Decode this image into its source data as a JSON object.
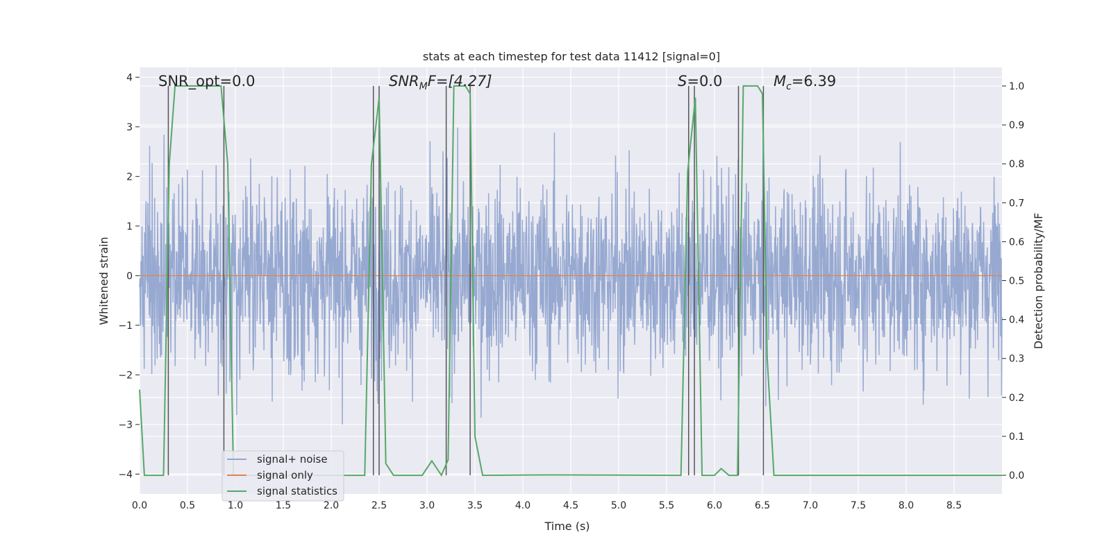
{
  "chart_data": {
    "type": "line",
    "title": "stats at each timestep for test data 11412 [signal=0]",
    "xlabel": "Time (s)",
    "ylabel": "Whitened strain",
    "y2label": "Detection probability/MF",
    "xlim": [
      0.0,
      9.0
    ],
    "ylim": [
      -4.4,
      4.2
    ],
    "y2lim": [
      -0.048,
      1.048
    ],
    "x_ticks": [
      "0.0",
      "0.5",
      "1.0",
      "1.5",
      "2.0",
      "2.5",
      "3.0",
      "3.5",
      "4.0",
      "4.5",
      "5.0",
      "5.5",
      "6.0",
      "6.5",
      "7.0",
      "7.5",
      "8.0",
      "8.5"
    ],
    "y_ticks": [
      "−4",
      "−3",
      "−2",
      "−1",
      "0",
      "1",
      "2",
      "3",
      "4"
    ],
    "y2_ticks": [
      "0.0",
      "0.1",
      "0.2",
      "0.3",
      "0.4",
      "0.5",
      "0.6",
      "0.7",
      "0.8",
      "0.9",
      "1.0"
    ],
    "grid": true,
    "legend_position": "bottom-left",
    "annotations": {
      "snr_opt": "SNR_opt=0.0",
      "snr_mf_main": "SNR",
      "snr_mf_sub": "M",
      "snr_mf_rest": "F=[4.27]",
      "s_main": "S",
      "s_rest": "=0.0",
      "mc_main": "M",
      "mc_sub": "c",
      "mc_rest": "=6.39"
    },
    "series": [
      {
        "name": "signal+ noise",
        "color": "#92a5cf",
        "description_of_values": "whitened noise, roughly Gaussian, amplitude mostly within ±2.5, extremes about ±3.7",
        "typical_range": [
          -3.7,
          3.7
        ]
      },
      {
        "name": "signal only",
        "color": "#dd8452",
        "x": [
          0.0,
          9.0
        ],
        "y": [
          0.0,
          0.0
        ]
      },
      {
        "name": "signal statistics",
        "color": "#55a868",
        "axis": "right",
        "x": [
          0.0,
          0.05,
          0.25,
          0.31,
          0.37,
          0.85,
          0.92,
          0.98,
          2.35,
          2.42,
          2.5,
          2.57,
          2.65,
          2.95,
          3.05,
          3.15,
          3.22,
          3.28,
          3.4,
          3.45,
          3.5,
          3.58,
          4.3,
          5.65,
          5.72,
          5.8,
          5.87,
          6.0,
          6.07,
          6.15,
          6.24,
          6.3,
          6.45,
          6.5,
          6.55,
          6.62,
          9.0
        ],
        "y": [
          0.22,
          0.0,
          0.0,
          0.8,
          1.0,
          1.0,
          0.8,
          0.0,
          0.0,
          0.8,
          0.97,
          0.03,
          0.0,
          0.0,
          0.037,
          0.0,
          0.04,
          1.0,
          1.0,
          0.98,
          0.1,
          0.0,
          0.001,
          0.0,
          0.78,
          0.97,
          0.0,
          0.0,
          0.017,
          0.0,
          0.0,
          1.0,
          1.0,
          0.98,
          0.3,
          0.0,
          0.0
        ]
      }
    ],
    "vertical_lines": [
      0.3,
      0.88,
      2.44,
      2.5,
      3.2,
      3.45,
      5.73,
      5.79,
      6.25,
      6.51
    ]
  }
}
